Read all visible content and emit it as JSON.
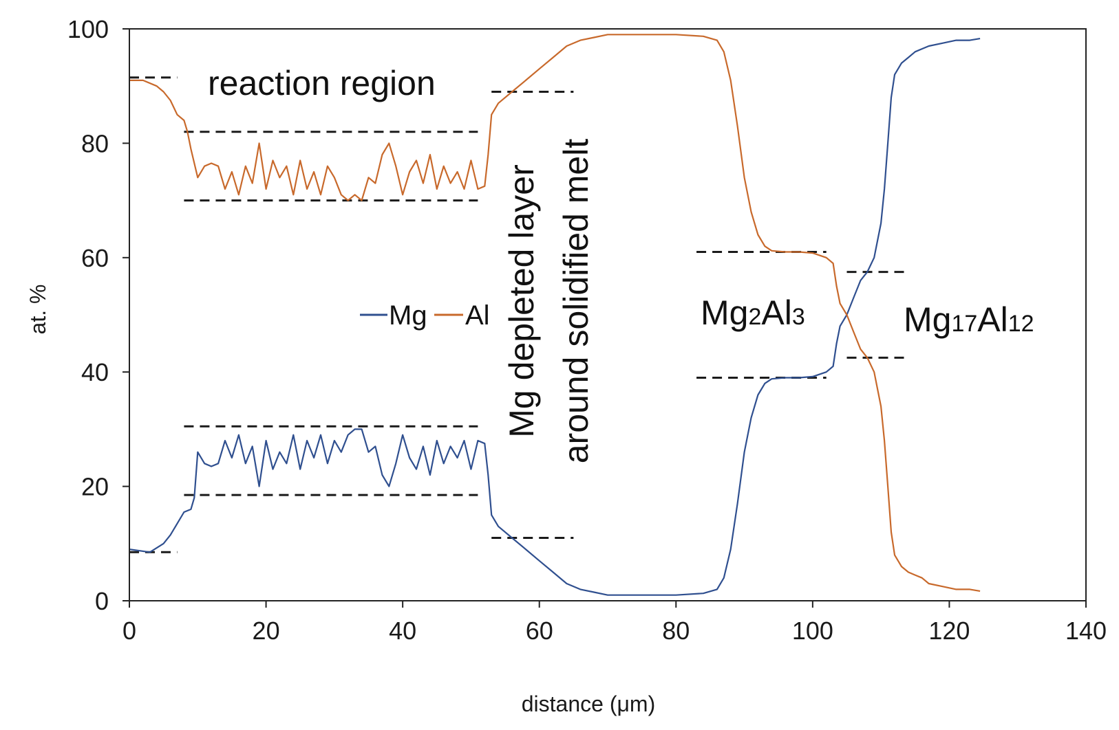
{
  "chart_data": {
    "type": "line",
    "title": "",
    "xlabel": "distance (μm)",
    "ylabel": "at. %",
    "xlim": [
      0,
      140
    ],
    "ylim": [
      0,
      100
    ],
    "xticks": [
      "0",
      "20",
      "40",
      "60",
      "80",
      "100",
      "120",
      "140"
    ],
    "yticks": [
      "0",
      "20",
      "40",
      "60",
      "80",
      "100"
    ],
    "grid": false,
    "legend": {
      "placement": "center-left",
      "entries": [
        "Mg",
        "Al"
      ]
    },
    "colors": {
      "Mg": "#2f4f8f",
      "Al": "#c8692b",
      "axis": "#222222",
      "guide": "#1a1a1a"
    },
    "series": [
      {
        "name": "Mg",
        "points": [
          [
            0,
            9
          ],
          [
            3,
            8.5
          ],
          [
            5,
            10
          ],
          [
            6,
            11.5
          ],
          [
            7,
            13.5
          ],
          [
            8,
            15.5
          ],
          [
            9,
            16
          ],
          [
            9.5,
            18
          ],
          [
            10,
            26
          ],
          [
            11,
            24
          ],
          [
            12,
            23.5
          ],
          [
            13,
            24
          ],
          [
            14,
            28
          ],
          [
            15,
            25
          ],
          [
            16,
            29
          ],
          [
            17,
            24
          ],
          [
            18,
            27
          ],
          [
            19,
            20
          ],
          [
            20,
            28
          ],
          [
            21,
            23
          ],
          [
            22,
            26
          ],
          [
            23,
            24
          ],
          [
            24,
            29
          ],
          [
            25,
            23
          ],
          [
            26,
            28
          ],
          [
            27,
            25
          ],
          [
            28,
            29
          ],
          [
            29,
            24
          ],
          [
            30,
            28
          ],
          [
            31,
            26
          ],
          [
            32,
            29
          ],
          [
            33,
            30
          ],
          [
            34,
            30
          ],
          [
            35,
            26
          ],
          [
            36,
            27
          ],
          [
            37,
            22
          ],
          [
            38,
            20
          ],
          [
            39,
            24
          ],
          [
            40,
            29
          ],
          [
            41,
            25
          ],
          [
            42,
            23
          ],
          [
            43,
            27
          ],
          [
            44,
            22
          ],
          [
            45,
            28
          ],
          [
            46,
            24
          ],
          [
            47,
            27
          ],
          [
            48,
            25
          ],
          [
            49,
            28
          ],
          [
            50,
            23
          ],
          [
            51,
            28
          ],
          [
            52,
            27.5
          ],
          [
            52.5,
            22
          ],
          [
            53,
            15
          ],
          [
            54,
            13
          ],
          [
            56,
            11
          ],
          [
            58,
            9
          ],
          [
            60,
            7
          ],
          [
            62,
            5
          ],
          [
            64,
            3
          ],
          [
            66,
            2
          ],
          [
            68,
            1.5
          ],
          [
            70,
            1
          ],
          [
            75,
            1
          ],
          [
            80,
            1
          ],
          [
            84,
            1.3
          ],
          [
            86,
            2
          ],
          [
            87,
            4
          ],
          [
            88,
            9
          ],
          [
            89,
            17
          ],
          [
            90,
            26
          ],
          [
            91,
            32
          ],
          [
            92,
            36
          ],
          [
            93,
            38
          ],
          [
            94,
            38.8
          ],
          [
            96,
            39
          ],
          [
            98,
            39
          ],
          [
            100,
            39.2
          ],
          [
            102,
            40
          ],
          [
            103,
            41
          ],
          [
            103.5,
            45
          ],
          [
            104,
            48
          ],
          [
            105,
            50
          ],
          [
            106,
            53
          ],
          [
            107,
            56
          ],
          [
            108,
            57.5
          ],
          [
            109,
            60
          ],
          [
            110,
            66
          ],
          [
            110.5,
            72
          ],
          [
            111,
            80
          ],
          [
            111.5,
            88
          ],
          [
            112,
            92
          ],
          [
            113,
            94
          ],
          [
            114,
            95
          ],
          [
            115,
            96
          ],
          [
            116,
            96.5
          ],
          [
            117,
            97
          ],
          [
            119,
            97.5
          ],
          [
            121,
            98
          ],
          [
            123,
            98
          ],
          [
            124.5,
            98.3
          ]
        ]
      },
      {
        "name": "Al",
        "points": [
          [
            0,
            91
          ],
          [
            2,
            91
          ],
          [
            4,
            90
          ],
          [
            5,
            89
          ],
          [
            6,
            87.5
          ],
          [
            7,
            85
          ],
          [
            8,
            84
          ],
          [
            8.5,
            82
          ],
          [
            9,
            79
          ],
          [
            10,
            74
          ],
          [
            11,
            76
          ],
          [
            12,
            76.5
          ],
          [
            13,
            76
          ],
          [
            14,
            72
          ],
          [
            15,
            75
          ],
          [
            16,
            71
          ],
          [
            17,
            76
          ],
          [
            18,
            73
          ],
          [
            19,
            80
          ],
          [
            20,
            72
          ],
          [
            21,
            77
          ],
          [
            22,
            74
          ],
          [
            23,
            76
          ],
          [
            24,
            71
          ],
          [
            25,
            77
          ],
          [
            26,
            72
          ],
          [
            27,
            75
          ],
          [
            28,
            71
          ],
          [
            29,
            76
          ],
          [
            30,
            74
          ],
          [
            31,
            71
          ],
          [
            32,
            70
          ],
          [
            33,
            71
          ],
          [
            34,
            70
          ],
          [
            35,
            74
          ],
          [
            36,
            73
          ],
          [
            37,
            78
          ],
          [
            38,
            80
          ],
          [
            39,
            76
          ],
          [
            40,
            71
          ],
          [
            41,
            75
          ],
          [
            42,
            77
          ],
          [
            43,
            73
          ],
          [
            44,
            78
          ],
          [
            45,
            72
          ],
          [
            46,
            76
          ],
          [
            47,
            73
          ],
          [
            48,
            75
          ],
          [
            49,
            72
          ],
          [
            50,
            77
          ],
          [
            51,
            72
          ],
          [
            52,
            72.5
          ],
          [
            52.5,
            78
          ],
          [
            53,
            85
          ],
          [
            54,
            87
          ],
          [
            56,
            89
          ],
          [
            58,
            91
          ],
          [
            60,
            93
          ],
          [
            62,
            95
          ],
          [
            64,
            97
          ],
          [
            66,
            98
          ],
          [
            68,
            98.5
          ],
          [
            70,
            99
          ],
          [
            75,
            99
          ],
          [
            80,
            99
          ],
          [
            84,
            98.7
          ],
          [
            86,
            98
          ],
          [
            87,
            96
          ],
          [
            88,
            91
          ],
          [
            89,
            83
          ],
          [
            90,
            74
          ],
          [
            91,
            68
          ],
          [
            92,
            64
          ],
          [
            93,
            62
          ],
          [
            94,
            61.2
          ],
          [
            96,
            61
          ],
          [
            98,
            61
          ],
          [
            100,
            60.8
          ],
          [
            102,
            60
          ],
          [
            103,
            59
          ],
          [
            103.5,
            55
          ],
          [
            104,
            52
          ],
          [
            105,
            50
          ],
          [
            106,
            47
          ],
          [
            107,
            44
          ],
          [
            108,
            42.5
          ],
          [
            109,
            40
          ],
          [
            110,
            34
          ],
          [
            110.5,
            28
          ],
          [
            111,
            20
          ],
          [
            111.5,
            12
          ],
          [
            112,
            8
          ],
          [
            113,
            6
          ],
          [
            114,
            5
          ],
          [
            115,
            4.5
          ],
          [
            116,
            4
          ],
          [
            117,
            3
          ],
          [
            119,
            2.5
          ],
          [
            121,
            2
          ],
          [
            123,
            2
          ],
          [
            124.5,
            1.7
          ]
        ]
      }
    ],
    "guides": [
      {
        "x": [
          0,
          7
        ],
        "y": 91.5
      },
      {
        "x": [
          0,
          7
        ],
        "y": 8.5
      },
      {
        "x": [
          8,
          51
        ],
        "y": 82
      },
      {
        "x": [
          8,
          51
        ],
        "y": 70
      },
      {
        "x": [
          8,
          51
        ],
        "y": 30.5
      },
      {
        "x": [
          8,
          51
        ],
        "y": 18.5
      },
      {
        "x": [
          53,
          65
        ],
        "y": 89
      },
      {
        "x": [
          53,
          65
        ],
        "y": 11
      },
      {
        "x": [
          83,
          102
        ],
        "y": 61
      },
      {
        "x": [
          83,
          102
        ],
        "y": 39
      },
      {
        "x": [
          105,
          114
        ],
        "y": 57.5
      },
      {
        "x": [
          105,
          114
        ],
        "y": 42.5
      }
    ],
    "annotations": {
      "reaction_region": "reaction region",
      "depleted_line1": "Mg depleted layer",
      "depleted_line2": "around solidified melt",
      "phase1": {
        "base": "Mg",
        "sub1": "2",
        "mid": "Al",
        "sub2": "3"
      },
      "phase2": {
        "base": "Mg",
        "sub1": "17",
        "mid": "Al",
        "sub2": "12"
      }
    }
  }
}
